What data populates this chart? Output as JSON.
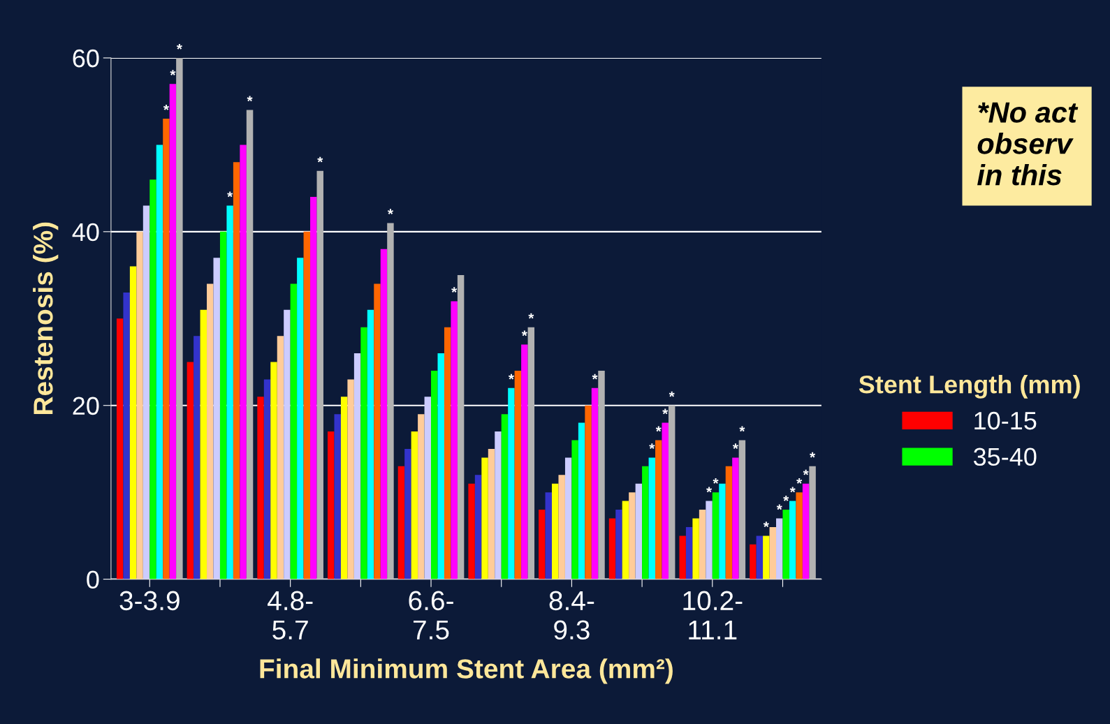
{
  "chart_data": {
    "type": "bar",
    "xlabel": "Final Minimum Stent Area (mm²)",
    "ylabel": "Restenosis (%)",
    "legend_title": "Stent Length (mm)",
    "legend": "right",
    "categories": [
      "3-3.9",
      null,
      "4.8-\n5.7",
      null,
      "6.6-\n7.5",
      null,
      "8.4-\n9.3",
      null,
      "10.2-\n11.1",
      null
    ],
    "series": [
      {
        "name": "10-15",
        "color": "#ff0000",
        "values": [
          30,
          25,
          21,
          17,
          13,
          11,
          8,
          7,
          5,
          4
        ]
      },
      {
        "color": "#3333cc",
        "values": [
          33,
          28,
          23,
          19,
          15,
          12,
          10,
          8,
          6,
          5
        ]
      },
      {
        "color": "#ffff00",
        "values": [
          36,
          31,
          25,
          21,
          17,
          14,
          11,
          9,
          7,
          5
        ],
        "value_labels": [
          null,
          null,
          null,
          null,
          null,
          null,
          null,
          null,
          null,
          "*"
        ]
      },
      {
        "color": "#ffcc99",
        "values": [
          40,
          34,
          28,
          23,
          19,
          15,
          12,
          10,
          8,
          6
        ]
      },
      {
        "color": "#ccccff",
        "values": [
          43,
          37,
          31,
          26,
          21,
          17,
          14,
          11,
          9,
          7
        ],
        "value_labels": [
          null,
          null,
          null,
          null,
          null,
          null,
          null,
          null,
          "*",
          "*"
        ]
      },
      {
        "name": "35-40",
        "color": "#00ff00",
        "values": [
          46,
          40,
          34,
          29,
          24,
          19,
          16,
          13,
          10,
          8
        ],
        "value_labels": [
          null,
          null,
          null,
          null,
          null,
          null,
          null,
          null,
          "*",
          "*"
        ]
      },
      {
        "color": "#00ffff",
        "values": [
          50,
          43,
          37,
          31,
          26,
          22,
          18,
          14,
          11,
          9
        ],
        "value_labels": [
          null,
          "*",
          null,
          null,
          null,
          "*",
          null,
          "*",
          null,
          "*"
        ]
      },
      {
        "color": "#ff6600",
        "values": [
          53,
          48,
          40,
          34,
          29,
          24,
          20,
          16,
          13,
          10
        ],
        "value_labels": [
          "*",
          null,
          null,
          null,
          null,
          null,
          null,
          "*",
          null,
          "*"
        ]
      },
      {
        "color": "#ff00ff",
        "values": [
          57,
          50,
          44,
          38,
          32,
          27,
          22,
          18,
          14,
          11
        ],
        "value_labels": [
          "*",
          null,
          null,
          null,
          "*",
          "*",
          "*",
          "*",
          "*",
          "*"
        ]
      },
      {
        "color": "#b2b2b2",
        "values": [
          60,
          54,
          47,
          41,
          35,
          29,
          24,
          20,
          16,
          13
        ],
        "value_labels": [
          "*",
          "*",
          "*",
          "*",
          null,
          "*",
          null,
          "*",
          "*",
          "*"
        ]
      }
    ],
    "ylim": [
      0,
      60
    ],
    "yticks": [
      0,
      20,
      40,
      60
    ],
    "grid": "y",
    "annotations": [
      "*No act\nobserv\nin this"
    ]
  }
}
